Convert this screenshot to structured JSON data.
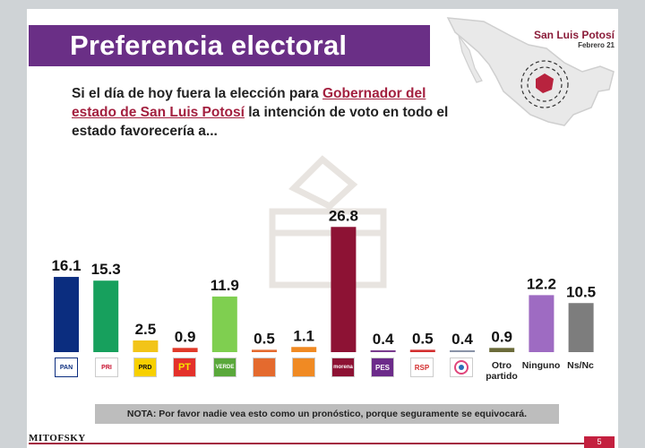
{
  "header": {
    "title": "Preferencia electoral",
    "state": "San Luis Potosí",
    "date": "Febrero 21"
  },
  "question": {
    "part1": "Si el día de hoy fuera la elección para ",
    "highlight1": "Gobernador del estado de San Luis Potosí",
    "part2": " la intención de voto en todo el estado favorecería a..."
  },
  "chart_data": {
    "type": "bar",
    "categories": [
      "PAN",
      "PRI",
      "PRD",
      "PT",
      "VERDE",
      "CONVERGENCIA",
      "MC",
      "morena",
      "PES",
      "RSP",
      "FxM",
      "Otro partido",
      "Ninguno",
      "Ns/Nc"
    ],
    "values": [
      16.1,
      15.3,
      2.5,
      0.9,
      11.9,
      0.5,
      1.1,
      26.8,
      0.4,
      0.5,
      0.4,
      0.9,
      12.2,
      10.5
    ],
    "colors": [
      "#0b2d7f",
      "#17a05d",
      "#f2c418",
      "#e03a2a",
      "#7fcf50",
      "#e46a2e",
      "#f08a23",
      "#8d1234",
      "#7a3d8f",
      "#d32f2f",
      "#8a93a8",
      "#6b6b3a",
      "#9e6bc2",
      "#7d7d7d"
    ],
    "labels": [
      "16.1",
      "15.3",
      "2.5",
      "0.9",
      "11.9",
      "0.5",
      "1.1",
      "26.8",
      "0.4",
      "0.5",
      "0.4",
      "0.9",
      "12.2",
      "10.5"
    ],
    "ylim": [
      0,
      28
    ]
  },
  "logos": {
    "pan": "PAN",
    "pri": "PRI",
    "prd": "PRD",
    "pt": "PT",
    "verde": "VERDE",
    "pes": "PES",
    "rsp": "RSP",
    "morena": "morena",
    "otro": "Otro partido",
    "ninguno": "Ninguno",
    "nsnc": "Ns/Nc"
  },
  "note": "NOTA: Por favor nadie vea esto como un pronóstico, porque seguramente se equivocará.",
  "brand": "MITOFSKY",
  "page": "5"
}
